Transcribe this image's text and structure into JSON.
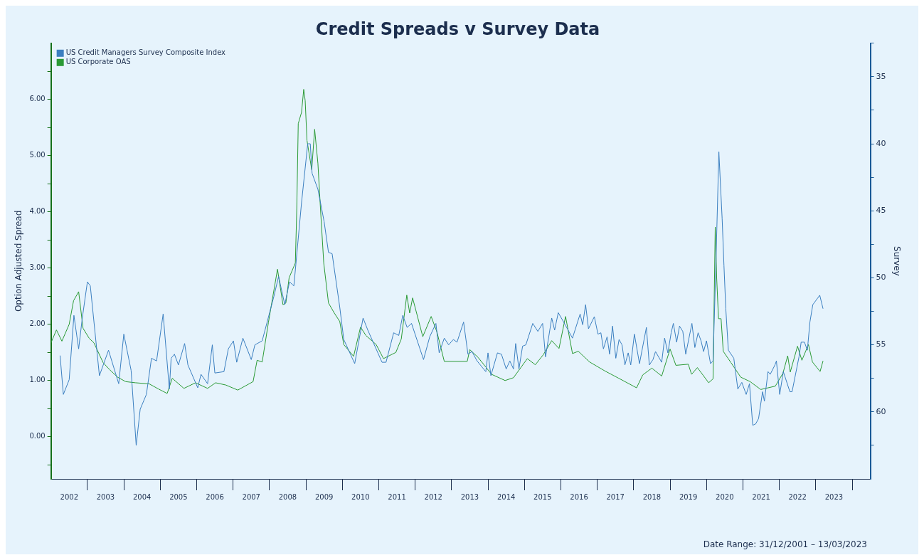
{
  "chart_data": {
    "type": "line",
    "title": "Credit Spreads v Survey Data",
    "ylabel": "Option Adjusted Spread",
    "y2label": "Survey",
    "annotations": [
      "Date Range: 31/12/2001 – 13/03/2023"
    ],
    "legend": "top left",
    "grid": false,
    "marker": "none",
    "line_style": "solid",
    "xlim": [
      2002,
      2024.5
    ],
    "xticks": [
      {
        "value": 2002.5,
        "label": "2002"
      },
      {
        "value": 2003,
        "label": null
      },
      {
        "value": 2003.5,
        "label": "2003"
      },
      {
        "value": 2004,
        "label": null
      },
      {
        "value": 2004.5,
        "label": "2004"
      },
      {
        "value": 2005,
        "label": null
      },
      {
        "value": 2005.5,
        "label": "2005"
      },
      {
        "value": 2006,
        "label": null
      },
      {
        "value": 2006.5,
        "label": "2006"
      },
      {
        "value": 2007,
        "label": null
      },
      {
        "value": 2007.5,
        "label": "2007"
      },
      {
        "value": 2008,
        "label": null
      },
      {
        "value": 2008.5,
        "label": "2008"
      },
      {
        "value": 2009,
        "label": null
      },
      {
        "value": 2009.5,
        "label": "2009"
      },
      {
        "value": 2010,
        "label": null
      },
      {
        "value": 2010.5,
        "label": "2010"
      },
      {
        "value": 2011,
        "label": null
      },
      {
        "value": 2011.5,
        "label": "2011"
      },
      {
        "value": 2012,
        "label": null
      },
      {
        "value": 2012.5,
        "label": "2012"
      },
      {
        "value": 2013,
        "label": null
      },
      {
        "value": 2013.5,
        "label": "2013"
      },
      {
        "value": 2014,
        "label": null
      },
      {
        "value": 2014.5,
        "label": "2014"
      },
      {
        "value": 2015,
        "label": null
      },
      {
        "value": 2015.5,
        "label": "2015"
      },
      {
        "value": 2016,
        "label": null
      },
      {
        "value": 2016.5,
        "label": "2016"
      },
      {
        "value": 2017,
        "label": null
      },
      {
        "value": 2017.5,
        "label": "2017"
      },
      {
        "value": 2018,
        "label": null
      },
      {
        "value": 2018.5,
        "label": "2018"
      },
      {
        "value": 2019,
        "label": null
      },
      {
        "value": 2019.5,
        "label": "2019"
      },
      {
        "value": 2020,
        "label": null
      },
      {
        "value": 2020.5,
        "label": "2020"
      },
      {
        "value": 2021,
        "label": null
      },
      {
        "value": 2021.5,
        "label": "2021"
      },
      {
        "value": 2022,
        "label": null
      },
      {
        "value": 2022.5,
        "label": "2022"
      },
      {
        "value": 2023,
        "label": null
      },
      {
        "value": 2023.5,
        "label": "2023"
      },
      {
        "value": 2024,
        "label": null
      }
    ],
    "ylim": [
      -0.75,
      7.0
    ],
    "yticks": [
      {
        "value": -0.5,
        "label": null
      },
      {
        "value": 0,
        "label": "0.00"
      },
      {
        "value": 0.5,
        "label": null
      },
      {
        "value": 1,
        "label": "1.00"
      },
      {
        "value": 1.5,
        "label": null
      },
      {
        "value": 2,
        "label": "2.00"
      },
      {
        "value": 2.5,
        "label": null
      },
      {
        "value": 3,
        "label": "3.00"
      },
      {
        "value": 3.5,
        "label": null
      },
      {
        "value": 4,
        "label": "4.00"
      },
      {
        "value": 4.5,
        "label": null
      },
      {
        "value": 5,
        "label": "5.00"
      },
      {
        "value": 5.5,
        "label": null
      },
      {
        "value": 6,
        "label": "6.00"
      },
      {
        "value": 6.5,
        "label": null
      }
    ],
    "y2lim": [
      65,
      32.5
    ],
    "y2ticks": [
      {
        "value": 32.5,
        "label": null
      },
      {
        "value": 35,
        "label": "35"
      },
      {
        "value": 37.5,
        "label": null
      },
      {
        "value": 40,
        "label": "40"
      },
      {
        "value": 42.5,
        "label": null
      },
      {
        "value": 45,
        "label": "45"
      },
      {
        "value": 47.5,
        "label": null
      },
      {
        "value": 50,
        "label": "50"
      },
      {
        "value": 52.5,
        "label": null
      },
      {
        "value": 55,
        "label": "55"
      },
      {
        "value": 57.5,
        "label": null
      },
      {
        "value": 60,
        "label": "60"
      },
      {
        "value": 62.5,
        "label": null
      }
    ],
    "series": [
      {
        "name": "US Credit Managers Survey Composite Index",
        "color": "#3b7fc0",
        "axis": "y2",
        "x": [
          2002.25,
          2002.34,
          2002.5,
          2002.63,
          2002.76,
          2002.86,
          2003.0,
          2003.08,
          2003.33,
          2003.58,
          2003.86,
          2004.0,
          2004.2,
          2004.34,
          2004.45,
          2004.62,
          2004.76,
          2004.9,
          2005.08,
          2005.25,
          2005.3,
          2005.39,
          2005.5,
          2005.67,
          2005.76,
          2006.03,
          2006.12,
          2006.3,
          2006.43,
          2006.5,
          2006.75,
          2006.87,
          2007.01,
          2007.1,
          2007.27,
          2007.5,
          2007.6,
          2007.8,
          2008.12,
          2008.25,
          2008.42,
          2008.55,
          2008.67,
          2008.88,
          2009.05,
          2009.12,
          2009.17,
          2009.33,
          2009.5,
          2009.62,
          2009.72,
          2009.93,
          2010.04,
          2010.34,
          2010.57,
          2010.7,
          2011.09,
          2011.2,
          2011.41,
          2011.55,
          2011.66,
          2011.78,
          2011.9,
          2012.23,
          2012.4,
          2012.57,
          2012.66,
          2012.8,
          2012.92,
          2013.05,
          2013.15,
          2013.33,
          2013.45,
          2013.56,
          2013.7,
          2013.94,
          2014.0,
          2014.08,
          2014.26,
          2014.37,
          2014.5,
          2014.6,
          2014.7,
          2014.76,
          2014.85,
          2014.95,
          2015.04,
          2015.23,
          2015.37,
          2015.5,
          2015.58,
          2015.75,
          2015.83,
          2015.93,
          2016.12,
          2016.32,
          2016.53,
          2016.6,
          2016.68,
          2016.76,
          2016.92,
          2017.02,
          2017.1,
          2017.17,
          2017.27,
          2017.34,
          2017.42,
          2017.51,
          2017.6,
          2017.68,
          2017.76,
          2017.85,
          2017.92,
          2018.02,
          2018.16,
          2018.35,
          2018.43,
          2018.53,
          2018.6,
          2018.77,
          2018.85,
          2018.94,
          2019.03,
          2019.09,
          2019.18,
          2019.26,
          2019.35,
          2019.43,
          2019.6,
          2019.68,
          2019.77,
          2019.85,
          2019.92,
          2020.0,
          2020.11,
          2020.18,
          2020.26,
          2020.34,
          2020.43,
          2020.48,
          2020.53,
          2020.6,
          2020.75,
          2020.86,
          2020.97,
          2021.09,
          2021.18,
          2021.27,
          2021.35,
          2021.43,
          2021.54,
          2021.59,
          2021.69,
          2021.75,
          2021.88,
          2021.92,
          2022.01,
          2022.11,
          2022.29,
          2022.35,
          2022.54,
          2022.6,
          2022.69,
          2022.77,
          2022.84,
          2022.92,
          2023.11,
          2023.2
        ],
        "values": [
          55.8,
          58.7,
          57.6,
          52.8,
          55.3,
          53.0,
          50.3,
          50.6,
          57.3,
          55.4,
          57.9,
          54.2,
          56.9,
          62.5,
          59.8,
          58.7,
          56.0,
          56.2,
          52.7,
          58.3,
          56.0,
          55.7,
          56.5,
          54.9,
          56.5,
          58.2,
          57.2,
          57.9,
          55.0,
          57.1,
          57.0,
          55.3,
          54.7,
          56.3,
          54.5,
          56.1,
          55.0,
          54.7,
          51.4,
          49.9,
          52.0,
          50.3,
          50.6,
          44.4,
          40.0,
          40.0,
          42.2,
          43.4,
          45.8,
          48.1,
          48.2,
          52.2,
          54.6,
          56.4,
          53.0,
          53.9,
          56.3,
          56.3,
          54.1,
          54.3,
          52.8,
          53.7,
          53.4,
          56.1,
          54.4,
          53.4,
          55.6,
          54.5,
          55.0,
          54.6,
          54.8,
          53.3,
          55.7,
          55.5,
          56.2,
          57.0,
          55.6,
          57.3,
          55.6,
          55.7,
          56.8,
          56.2,
          56.8,
          54.9,
          56.8,
          55.1,
          55.0,
          53.4,
          54.0,
          53.4,
          55.9,
          53.0,
          53.9,
          52.6,
          53.5,
          54.5,
          52.7,
          53.5,
          52.0,
          53.8,
          52.9,
          54.2,
          54.1,
          55.3,
          54.4,
          55.7,
          53.6,
          56.0,
          54.6,
          55.0,
          56.5,
          55.6,
          56.5,
          54.2,
          56.4,
          53.7,
          56.5,
          56.1,
          55.5,
          56.3,
          54.5,
          55.6,
          54.1,
          53.4,
          54.8,
          53.6,
          54.0,
          55.7,
          53.4,
          55.2,
          54.1,
          54.7,
          55.5,
          54.7,
          56.4,
          56.2,
          48.8,
          40.6,
          45.6,
          49.1,
          52.3,
          55.4,
          56.0,
          58.3,
          57.8,
          58.7,
          57.9,
          61.0,
          60.9,
          60.5,
          58.5,
          59.2,
          57.0,
          57.2,
          56.5,
          56.2,
          58.7,
          57.0,
          58.5,
          58.5,
          55.9,
          54.8,
          54.8,
          55.4,
          53.3,
          52.0,
          51.3,
          52.3
        ]
      },
      {
        "name": "US Corporate OAS",
        "color": "#2a9a35",
        "axis": "y",
        "x": [
          2002.0,
          2002.15,
          2002.3,
          2002.5,
          2002.62,
          2002.76,
          2002.88,
          2003.05,
          2003.18,
          2003.43,
          2003.6,
          2003.83,
          2004.05,
          2004.32,
          2004.7,
          2004.95,
          2005.19,
          2005.33,
          2005.65,
          2005.97,
          2006.3,
          2006.52,
          2006.8,
          2007.13,
          2007.55,
          2007.66,
          2007.8,
          2007.97,
          2008.22,
          2008.37,
          2008.45,
          2008.54,
          2008.71,
          2008.75,
          2008.79,
          2008.88,
          2008.94,
          2008.98,
          2009.03,
          2009.12,
          2009.16,
          2009.24,
          2009.33,
          2009.4,
          2009.49,
          2009.62,
          2009.78,
          2009.93,
          2010.04,
          2010.31,
          2010.5,
          2010.65,
          2010.93,
          2011.13,
          2011.47,
          2011.62,
          2011.77,
          2011.85,
          2011.93,
          2012.21,
          2012.44,
          2012.6,
          2012.8,
          2013.43,
          2013.5,
          2013.73,
          2014.1,
          2014.47,
          2014.7,
          2015.08,
          2015.3,
          2015.52,
          2015.75,
          2015.95,
          2016.13,
          2016.32,
          2016.48,
          2016.79,
          2017.21,
          2017.59,
          2018.08,
          2018.25,
          2018.5,
          2018.77,
          2019.0,
          2019.16,
          2019.5,
          2019.59,
          2019.75,
          2020.06,
          2020.18,
          2020.24,
          2020.28,
          2020.33,
          2020.4,
          2020.46,
          2020.67,
          2020.94,
          2021.2,
          2021.49,
          2021.89,
          2022.1,
          2022.23,
          2022.3,
          2022.5,
          2022.62,
          2022.8,
          2022.91,
          2023.12,
          2023.2
        ],
        "values": [
          1.67,
          1.9,
          1.7,
          2.0,
          2.42,
          2.58,
          1.93,
          1.75,
          1.67,
          1.32,
          1.2,
          1.06,
          0.98,
          0.96,
          0.94,
          0.85,
          0.77,
          1.04,
          0.86,
          0.96,
          0.86,
          0.96,
          0.92,
          0.83,
          0.98,
          1.36,
          1.33,
          2.03,
          2.98,
          2.35,
          2.38,
          2.83,
          3.09,
          4.06,
          5.57,
          5.77,
          6.18,
          5.98,
          5.27,
          4.91,
          4.75,
          5.47,
          4.86,
          4.06,
          3.09,
          2.38,
          2.2,
          2.05,
          1.64,
          1.43,
          1.95,
          1.8,
          1.64,
          1.39,
          1.5,
          1.74,
          2.52,
          2.2,
          2.47,
          1.78,
          2.14,
          1.86,
          1.34,
          1.34,
          1.55,
          1.41,
          1.11,
          1.0,
          1.05,
          1.39,
          1.28,
          1.46,
          1.71,
          1.57,
          2.14,
          1.48,
          1.52,
          1.33,
          1.17,
          1.04,
          0.87,
          1.1,
          1.22,
          1.08,
          1.56,
          1.27,
          1.29,
          1.11,
          1.23,
          0.96,
          1.03,
          3.73,
          2.82,
          2.1,
          2.1,
          1.52,
          1.32,
          1.06,
          0.98,
          0.84,
          0.9,
          1.13,
          1.44,
          1.15,
          1.61,
          1.36,
          1.64,
          1.33,
          1.16,
          1.35
        ]
      }
    ]
  }
}
